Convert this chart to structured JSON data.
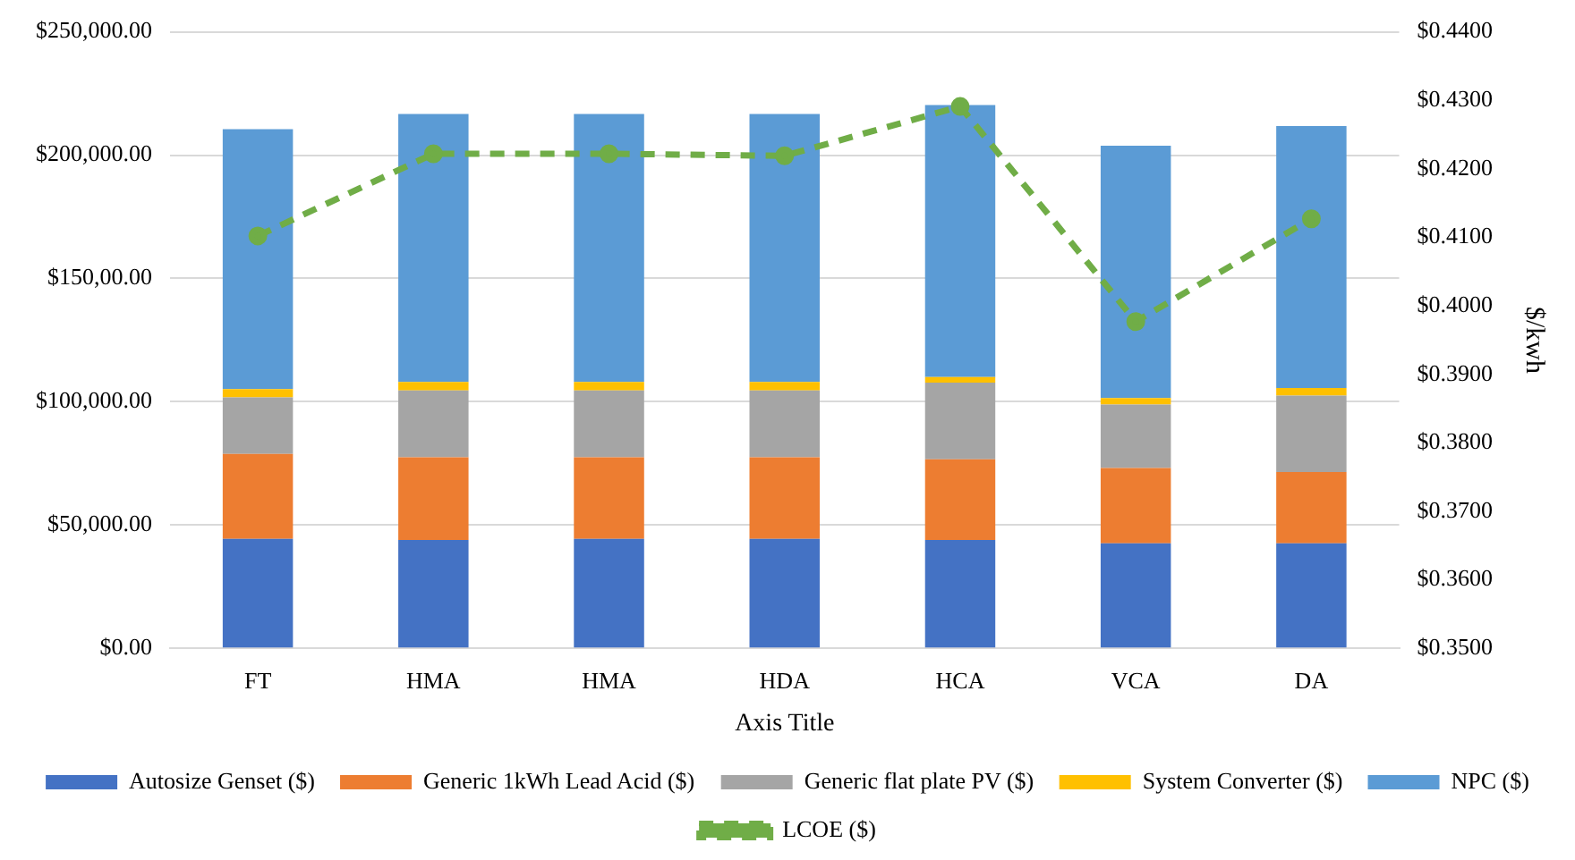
{
  "chart_data": {
    "type": "bar",
    "stacked": true,
    "categories": [
      "FT",
      "HMA",
      "HMA",
      "HDA",
      "HCA",
      "VCA",
      "DA"
    ],
    "xlabel": "Axis Title",
    "y2label": "$/kwh",
    "grid": "y",
    "legend": "bottom",
    "ylim": [
      0,
      250000
    ],
    "yticks": [
      {
        "value": 0,
        "label": "$0.00"
      },
      {
        "value": 50000,
        "label": "$50,000.00"
      },
      {
        "value": 100000,
        "label": "$100,000.00"
      },
      {
        "value": 150000,
        "label": "$150,00.00"
      },
      {
        "value": 200000,
        "label": "$200,000.00"
      },
      {
        "value": 250000,
        "label": "$250,000.00"
      }
    ],
    "y2lim": [
      0.35,
      0.44
    ],
    "y2ticks": [
      {
        "value": 0.35,
        "label": "$0.3500"
      },
      {
        "value": 0.36,
        "label": "$0.3600"
      },
      {
        "value": 0.37,
        "label": "$0.3700"
      },
      {
        "value": 0.38,
        "label": "$0.3800"
      },
      {
        "value": 0.39,
        "label": "$0.3900"
      },
      {
        "value": 0.4,
        "label": "$0.4000"
      },
      {
        "value": 0.41,
        "label": "$0.4100"
      },
      {
        "value": 0.42,
        "label": "$0.4200"
      },
      {
        "value": 0.43,
        "label": "$0.4300"
      },
      {
        "value": 0.44,
        "label": "$0.4400"
      }
    ],
    "series": [
      {
        "name": "Autosize Genset ($)",
        "color": "#4472c4",
        "values": [
          44400,
          43900,
          44400,
          44400,
          43900,
          42600,
          42600
        ]
      },
      {
        "name": "Generic 1kWh Lead Acid ($)",
        "color": "#ed7d31",
        "values": [
          34400,
          33600,
          33100,
          33100,
          32800,
          30500,
          28900
        ]
      },
      {
        "name": "Generic flat plate PV ($)",
        "color": "#a5a5a5",
        "values": [
          23000,
          27100,
          27100,
          27100,
          31000,
          25800,
          31000
        ]
      },
      {
        "name": "System Converter ($)",
        "color": "#ffc000",
        "values": [
          3300,
          3400,
          3400,
          3400,
          2300,
          2600,
          3100
        ]
      },
      {
        "name": "NPC ($)",
        "color": "#5b9bd5",
        "values": [
          105400,
          108700,
          108700,
          108700,
          110300,
          102300,
          106200
        ]
      },
      {
        "name": "LCOE ($)",
        "color": "#70ad47",
        "type": "line",
        "axis": "y2",
        "marker": "circle",
        "line_style": "dashed",
        "values": [
          0.4102,
          0.4222,
          0.4222,
          0.4219,
          0.4291,
          0.3977,
          0.4127
        ]
      }
    ]
  }
}
